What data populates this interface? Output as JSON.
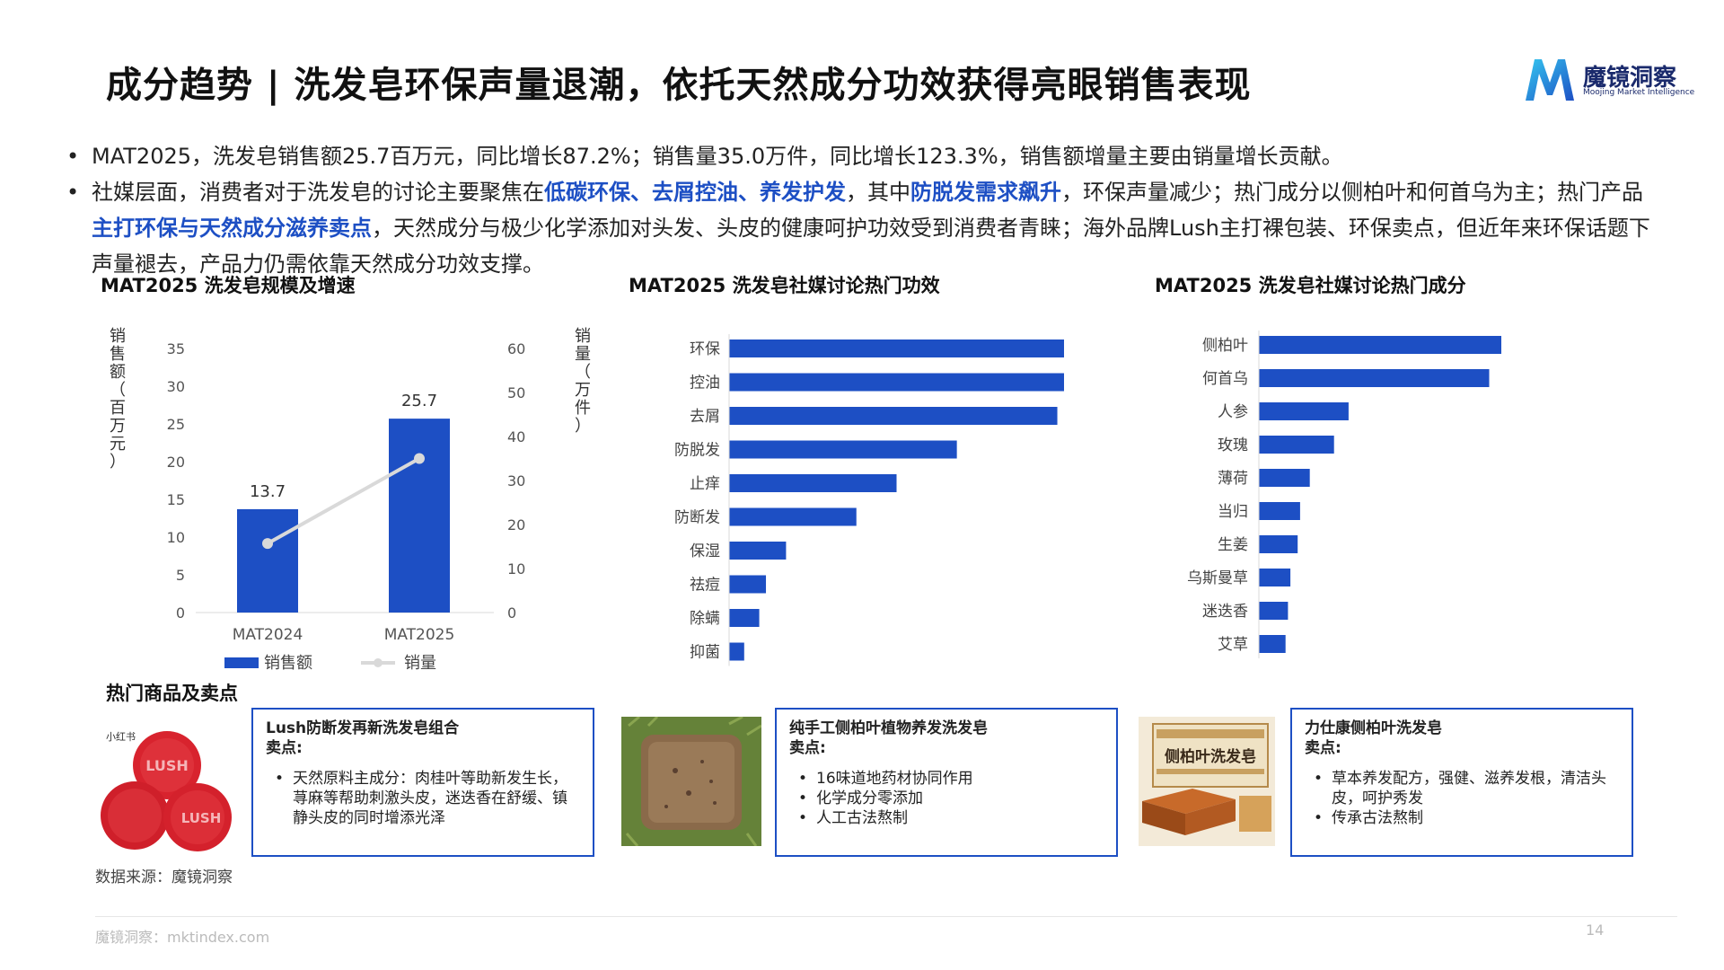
{
  "header": {
    "title": "成分趋势 | 洗发皂环保声量退潮，依托天然成分功效获得亮眼销售表现",
    "logo_cn": "魔镜洞察",
    "logo_en": "Moojing Market Intelligence"
  },
  "bullets": [
    [
      {
        "text": "MAT2025，洗发皂销售额25.7百万元，同比增长87.2%；销售量35.0万件，同比增长123.3%，销售额增量主要由销量增长贡献。",
        "hl": false
      }
    ],
    [
      {
        "text": "社媒层面，消费者对于洗发皂的讨论主要聚焦在",
        "hl": false
      },
      {
        "text": "低碳环保、去屑控油、养发护发",
        "hl": true
      },
      {
        "text": "，其中",
        "hl": false
      },
      {
        "text": "防脱发需求飙升",
        "hl": true
      },
      {
        "text": "，环保声量减少；热门成分以侧柏叶和何首乌为主；热门产品",
        "hl": false
      },
      {
        "text": "主打环保与天然成分滋养卖点",
        "hl": true
      },
      {
        "text": "，天然成分与极少化学添加对头发、头皮的健康呵护功效受到消费者青睐；海外品牌Lush主打裸包装、环保卖点，但近年来环保话题下声量褪去，产品力仍需依靠天然成分功效支撑。",
        "hl": false
      }
    ]
  ],
  "charts": {
    "scale_title": "MAT2025 洗发皂规模及增速",
    "efficacy_title": "MAT2025 洗发皂社媒讨论热门功效",
    "ingredient_title": "MAT2025 洗发皂社媒讨论热门成分"
  },
  "chart_data": [
    {
      "type": "bar",
      "title": "MAT2025 洗发皂规模及增速",
      "categories": [
        "MAT2024",
        "MAT2025"
      ],
      "series": [
        {
          "name": "销售额",
          "type": "bar",
          "axis": "left",
          "values": [
            13.7,
            25.7
          ],
          "color": "#1d4fc4"
        },
        {
          "name": "销量",
          "type": "line",
          "axis": "right",
          "values": [
            15.7,
            35.0
          ],
          "color": "#d9d9d9"
        }
      ],
      "ylabel_left": "销售额（百万元）",
      "ylabel_right": "销量（万件）",
      "ylim_left": [
        0,
        35
      ],
      "ylim_right": [
        0,
        60
      ],
      "yticks_left": [
        0,
        5,
        10,
        15,
        20,
        25,
        30,
        35
      ],
      "yticks_right": [
        0,
        10,
        20,
        30,
        40,
        50,
        60
      ],
      "data_labels": [
        "13.7",
        "25.7"
      ],
      "legend": "bottom"
    },
    {
      "type": "bar",
      "orientation": "horizontal",
      "title": "MAT2025 洗发皂社媒讨论热门功效",
      "categories": [
        "环保",
        "控油",
        "去屑",
        "防脱发",
        "止痒",
        "防断发",
        "保湿",
        "祛痘",
        "除螨",
        "抑菌"
      ],
      "values": [
        100,
        100,
        98,
        68,
        50,
        38,
        17,
        11,
        9,
        4.5
      ],
      "color": "#1d4fc4"
    },
    {
      "type": "bar",
      "orientation": "horizontal",
      "title": "MAT2025 洗发皂社媒讨论热门成分",
      "categories": [
        "侧柏叶",
        "何首乌",
        "人参",
        "玫瑰",
        "薄荷",
        "当归",
        "生姜",
        "乌斯曼草",
        "迷迭香",
        "艾草"
      ],
      "values": [
        100,
        95,
        37,
        31,
        21,
        17,
        16,
        13,
        12,
        11
      ],
      "color": "#1d4fc4"
    }
  ],
  "products": {
    "section_title": "热门商品及卖点",
    "items": [
      {
        "name": "Lush防断发再新洗发皂组合",
        "label": "卖点:",
        "points": [
          "天然原料主成分：肉桂叶等助新发生长，荨麻等帮助刺激头皮，迷迭香在舒缓、镇静头皮的同时增添光泽"
        ],
        "img_text": "LUSH",
        "img_tag": "小红书"
      },
      {
        "name": "纯手工侧柏叶植物养发洗发皂",
        "label": "卖点:",
        "points": [
          "16味道地药材协同作用",
          "化学成分零添加",
          "人工古法熬制"
        ]
      },
      {
        "name": "力仕康侧柏叶洗发皂",
        "label": "卖点:",
        "points": [
          "草本养发配方，强健、滋养发根，清洁头皮，呵护秀发",
          "传承古法熬制"
        ],
        "img_text": "侧柏叶洗发皂"
      }
    ]
  },
  "footer": {
    "source": "数据来源：魔镜洞察",
    "site": "魔镜洞察：mktindex.com",
    "page": "14"
  }
}
